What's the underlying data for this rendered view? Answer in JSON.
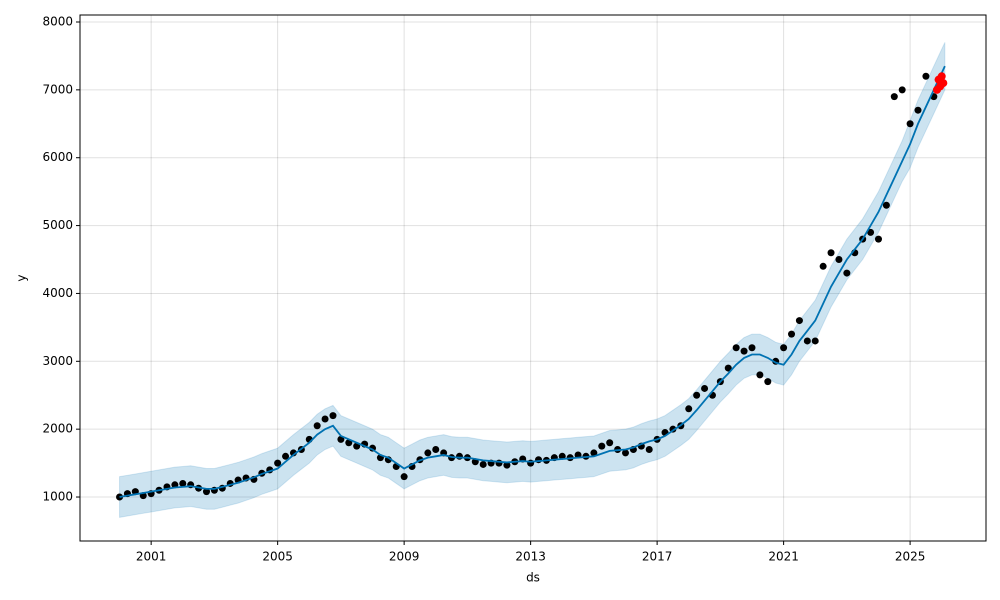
{
  "chart_data": {
    "type": "forecast",
    "xlabel": "ds",
    "ylabel": "y",
    "xlim": [
      1998.75,
      2027.4
    ],
    "ylim": [
      352,
      8103
    ],
    "xticks": [
      2001,
      2005,
      2009,
      2013,
      2017,
      2021,
      2025
    ],
    "yticks": [
      1000,
      2000,
      3000,
      4000,
      5000,
      6000,
      7000,
      8000
    ],
    "grid": true,
    "x": [
      2000,
      2000.25,
      2000.5,
      2000.75,
      2001,
      2001.25,
      2001.5,
      2001.75,
      2002,
      2002.25,
      2002.5,
      2002.75,
      2003,
      2003.25,
      2003.5,
      2003.75,
      2004,
      2004.25,
      2004.5,
      2004.75,
      2005,
      2005.25,
      2005.5,
      2005.75,
      2006,
      2006.25,
      2006.5,
      2006.75,
      2007,
      2007.25,
      2007.5,
      2007.75,
      2008,
      2008.25,
      2008.5,
      2008.75,
      2009,
      2009.25,
      2009.5,
      2009.75,
      2010,
      2010.25,
      2010.5,
      2010.75,
      2011,
      2011.25,
      2011.5,
      2011.75,
      2012,
      2012.25,
      2012.5,
      2012.75,
      2013,
      2013.25,
      2013.5,
      2013.75,
      2014,
      2014.25,
      2014.5,
      2014.75,
      2015,
      2015.25,
      2015.5,
      2015.75,
      2016,
      2016.25,
      2016.5,
      2016.75,
      2017,
      2017.25,
      2017.5,
      2017.75,
      2018,
      2018.25,
      2018.5,
      2018.75,
      2019,
      2019.25,
      2019.5,
      2019.75,
      2020,
      2020.25,
      2020.5,
      2020.75,
      2021,
      2021.25,
      2021.5,
      2021.75,
      2022,
      2022.25,
      2022.5,
      2022.75,
      2023,
      2023.25,
      2023.5,
      2023.75,
      2024,
      2024.25,
      2024.5,
      2024.75,
      2025,
      2025.25,
      2025.5,
      2025.75,
      2026.1
    ],
    "observed": {
      "color": "#000000",
      "values": [
        1000,
        1050,
        1080,
        1020,
        1050,
        1100,
        1150,
        1180,
        1200,
        1180,
        1130,
        1080,
        1100,
        1130,
        1200,
        1250,
        1280,
        1260,
        1350,
        1400,
        1500,
        1600,
        1650,
        1700,
        1850,
        2050,
        2150,
        2200,
        1850,
        1800,
        1750,
        1780,
        1720,
        1580,
        1550,
        1450,
        1300,
        1450,
        1550,
        1650,
        1700,
        1650,
        1580,
        1600,
        1580,
        1520,
        1480,
        1500,
        1500,
        1470,
        1520,
        1560,
        1500,
        1550,
        1540,
        1580,
        1600,
        1580,
        1620,
        1600,
        1650,
        1750,
        1800,
        1700,
        1650,
        1700,
        1750,
        1700,
        1850,
        1950,
        2000,
        2050,
        2300,
        2500,
        2600,
        2500,
        2700,
        2900,
        3200,
        3150,
        3200,
        2800,
        2700,
        3000,
        3200,
        3400,
        3600,
        3300,
        3300,
        4400,
        4600,
        4500,
        4300,
        4600,
        4800,
        4900,
        4800,
        5300,
        6900,
        7000,
        6500,
        6700,
        7200,
        6900,
        null
      ]
    },
    "forecast": {
      "color": "#0072B2",
      "values": [
        1000,
        1020,
        1040,
        1060,
        1080,
        1100,
        1120,
        1140,
        1150,
        1160,
        1140,
        1120,
        1120,
        1150,
        1180,
        1210,
        1250,
        1290,
        1340,
        1380,
        1420,
        1520,
        1620,
        1710,
        1800,
        1920,
        2000,
        2050,
        1900,
        1850,
        1800,
        1750,
        1700,
        1620,
        1580,
        1500,
        1420,
        1480,
        1540,
        1580,
        1600,
        1620,
        1590,
        1580,
        1580,
        1560,
        1540,
        1530,
        1520,
        1510,
        1520,
        1530,
        1520,
        1530,
        1540,
        1550,
        1560,
        1570,
        1580,
        1590,
        1600,
        1640,
        1680,
        1690,
        1700,
        1730,
        1780,
        1820,
        1850,
        1900,
        1980,
        2060,
        2150,
        2280,
        2420,
        2560,
        2700,
        2820,
        2950,
        3050,
        3100,
        3100,
        3050,
        2980,
        2950,
        3100,
        3300,
        3450,
        3600,
        3850,
        4100,
        4300,
        4500,
        4650,
        4800,
        5000,
        5200,
        5450,
        5700,
        5950,
        6200,
        6500,
        6750,
        7000,
        7350
      ]
    },
    "band": {
      "color": "#0072B2",
      "lower": [
        700,
        720,
        740,
        760,
        780,
        800,
        820,
        840,
        850,
        860,
        840,
        820,
        820,
        850,
        880,
        910,
        950,
        990,
        1040,
        1080,
        1120,
        1220,
        1320,
        1410,
        1500,
        1620,
        1700,
        1750,
        1600,
        1550,
        1500,
        1450,
        1400,
        1320,
        1280,
        1200,
        1120,
        1180,
        1240,
        1280,
        1300,
        1320,
        1290,
        1280,
        1280,
        1260,
        1240,
        1230,
        1220,
        1210,
        1220,
        1230,
        1220,
        1230,
        1240,
        1250,
        1260,
        1270,
        1280,
        1290,
        1300,
        1340,
        1380,
        1390,
        1400,
        1430,
        1480,
        1520,
        1550,
        1600,
        1680,
        1760,
        1850,
        1980,
        2120,
        2260,
        2400,
        2520,
        2650,
        2750,
        2800,
        2800,
        2750,
        2680,
        2650,
        2800,
        3000,
        3150,
        3300,
        3550,
        3800,
        4000,
        4200,
        4350,
        4500,
        4700,
        4900,
        5150,
        5400,
        5650,
        5850,
        6150,
        6400,
        6650,
        7000
      ],
      "upper": [
        1300,
        1320,
        1340,
        1360,
        1380,
        1400,
        1420,
        1440,
        1450,
        1460,
        1440,
        1420,
        1420,
        1450,
        1480,
        1510,
        1550,
        1590,
        1640,
        1680,
        1720,
        1820,
        1920,
        2010,
        2100,
        2220,
        2300,
        2350,
        2200,
        2150,
        2100,
        2050,
        2000,
        1920,
        1880,
        1800,
        1720,
        1780,
        1840,
        1880,
        1900,
        1920,
        1890,
        1880,
        1880,
        1860,
        1840,
        1830,
        1820,
        1810,
        1820,
        1830,
        1820,
        1830,
        1840,
        1850,
        1860,
        1870,
        1880,
        1890,
        1900,
        1940,
        1980,
        1990,
        2000,
        2030,
        2080,
        2120,
        2150,
        2200,
        2280,
        2360,
        2450,
        2580,
        2720,
        2860,
        3000,
        3120,
        3250,
        3350,
        3400,
        3400,
        3350,
        3280,
        3250,
        3400,
        3600,
        3750,
        3900,
        4150,
        4400,
        4600,
        4800,
        4950,
        5100,
        5300,
        5500,
        5750,
        6000,
        6250,
        6550,
        6850,
        7100,
        7350,
        7700
      ]
    },
    "highlight": {
      "color": "#ff0000",
      "x": [
        2025.85,
        2025.9,
        2025.95,
        2026.0,
        2026.05
      ],
      "values": [
        7000,
        7150,
        7050,
        7200,
        7100
      ]
    }
  }
}
